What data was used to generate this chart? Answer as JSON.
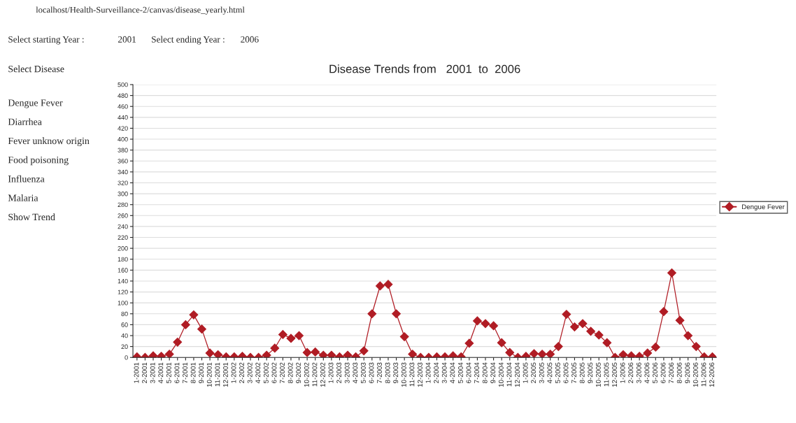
{
  "chart_data": {
    "type": "line",
    "title": "Disease Trends from   2001  to  2006",
    "categories": [
      "1-2001",
      "2-2001",
      "3-2001",
      "4-2001",
      "5-2001",
      "6-2001",
      "7-2001",
      "8-2001",
      "9-2001",
      "10-2001",
      "11-2001",
      "12-2001",
      "1-2002",
      "2-2002",
      "3-2002",
      "4-2002",
      "5-2002",
      "6-2002",
      "7-2002",
      "8-2002",
      "9-2002",
      "10-2002",
      "11-2002",
      "12-2002",
      "1-2003",
      "2-2003",
      "3-2003",
      "4-2003",
      "5-2003",
      "6-2003",
      "7-2003",
      "8-2003",
      "9-2003",
      "10-2003",
      "11-2003",
      "12-2003",
      "1-2004",
      "2-2004",
      "3-2004",
      "4-2004",
      "5-2004",
      "6-2004",
      "7-2004",
      "8-2004",
      "9-2004",
      "10-2004",
      "11-2004",
      "12-2004",
      "1-2005",
      "2-2005",
      "3-2005",
      "4-2005",
      "5-2005",
      "6-2005",
      "7-2005",
      "8-2005",
      "9-2005",
      "10-2005",
      "11-2005",
      "12-2005",
      "1-2006",
      "2-2006",
      "3-2006",
      "4-2006",
      "5-2006",
      "6-2006",
      "7-2006",
      "8-2006",
      "9-2006",
      "10-2006",
      "11-2006",
      "12-2006"
    ],
    "series": [
      {
        "name": "Dengue Fever",
        "color": "#b01c24",
        "values": [
          1,
          0,
          3,
          2,
          6,
          28,
          60,
          78,
          52,
          8,
          5,
          1,
          1,
          2,
          0,
          0,
          4,
          17,
          42,
          35,
          40,
          9,
          10,
          4,
          4,
          1,
          4,
          1,
          12,
          80,
          131,
          134,
          80,
          38,
          6,
          0,
          0,
          1,
          1,
          3,
          1,
          26,
          67,
          62,
          58,
          27,
          9,
          0,
          2,
          7,
          6,
          6,
          20,
          79,
          56,
          62,
          48,
          41,
          27,
          0,
          5,
          3,
          2,
          8,
          19,
          84,
          155,
          68,
          40,
          20,
          1,
          1
        ]
      }
    ],
    "ylim": [
      0,
      500
    ],
    "yticks": [
      0,
      20,
      40,
      60,
      80,
      100,
      120,
      140,
      160,
      180,
      200,
      220,
      240,
      260,
      280,
      300,
      320,
      340,
      360,
      380,
      400,
      420,
      440,
      460,
      480,
      500
    ],
    "grid": "y",
    "legend": "right",
    "marker": "diamond",
    "line_style": "solid",
    "annotations": [
      "localhost/Health-Surveillance-2/canvas/disease_yearly.html",
      "Select starting Year :",
      "2001",
      "Select ending Year :",
      "2006",
      "Select Disease",
      "Dengue Fever",
      "Diarrhea",
      "Fever unknow origin",
      "Food poisoning",
      "Influenza",
      "Malaria",
      "Show Trend"
    ]
  }
}
